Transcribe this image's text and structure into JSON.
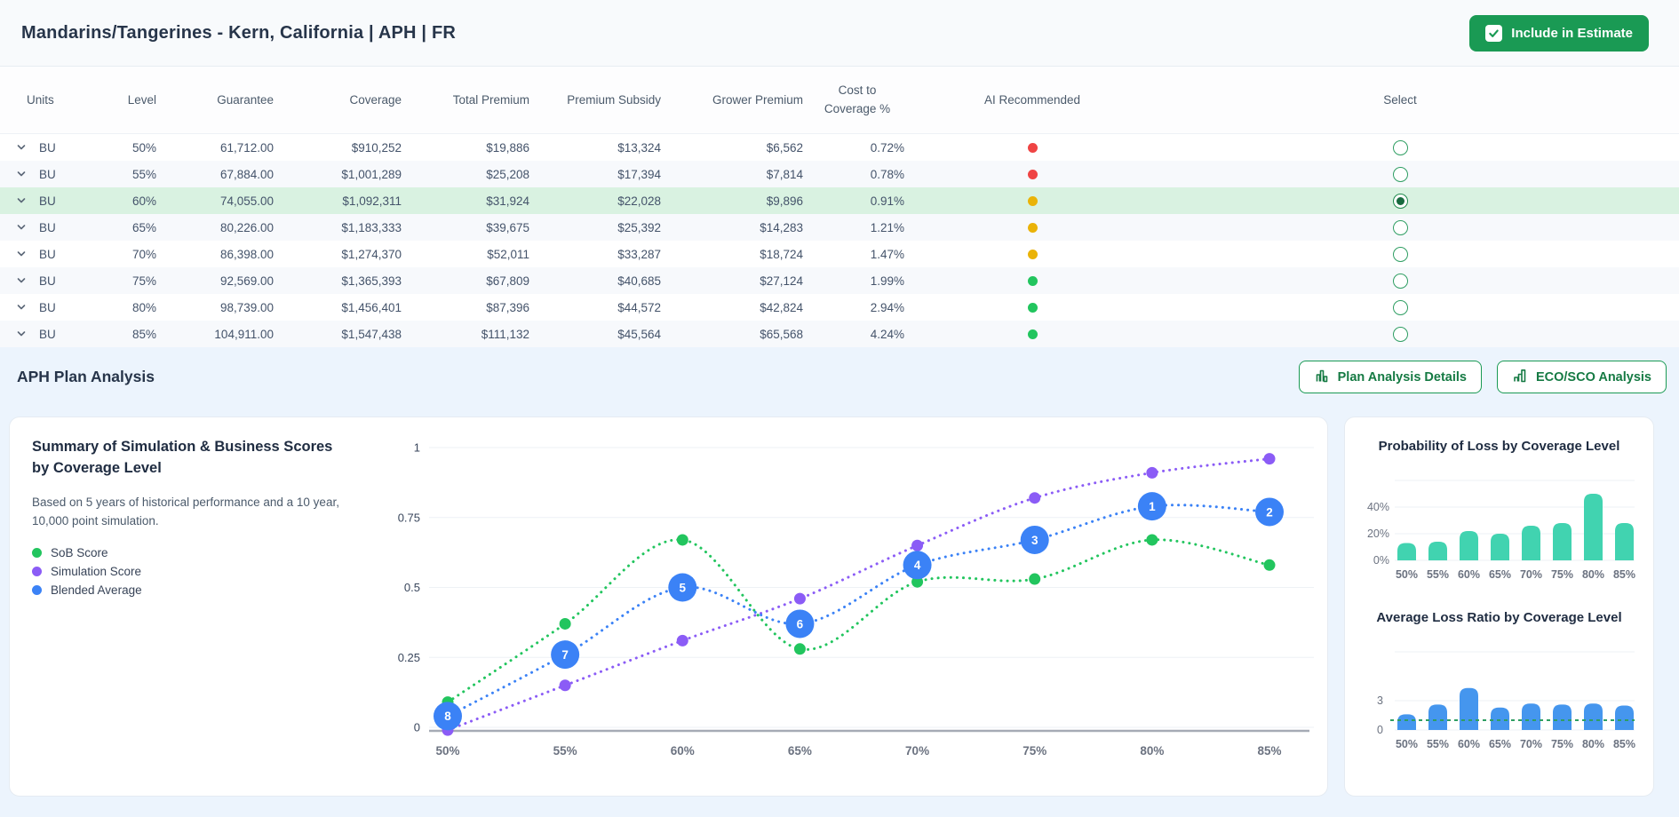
{
  "header": {
    "title": "Mandarins/Tangerines - Kern, California | APH | FR",
    "include_button": "Include in Estimate"
  },
  "table": {
    "columns": [
      "Units",
      "Level",
      "Guarantee",
      "Coverage",
      "Total Premium",
      "Premium Subsidy",
      "Grower Premium",
      "Cost to Coverage %",
      "AI Recommended",
      "Select"
    ],
    "ai_dot_colors": {
      "red": "#ef4444",
      "yellow": "#eab308",
      "green": "#22c55e"
    },
    "rows": [
      {
        "units": "BU",
        "level": "50%",
        "guarantee": "61,712.00",
        "coverage": "$910,252",
        "total_premium": "$19,886",
        "premium_subsidy": "$13,324",
        "grower_premium": "$6,562",
        "cost_to_coverage_pct": "0.72%",
        "ai_recommended": "red",
        "selected": false,
        "highlighted": false
      },
      {
        "units": "BU",
        "level": "55%",
        "guarantee": "67,884.00",
        "coverage": "$1,001,289",
        "total_premium": "$25,208",
        "premium_subsidy": "$17,394",
        "grower_premium": "$7,814",
        "cost_to_coverage_pct": "0.78%",
        "ai_recommended": "red",
        "selected": false,
        "highlighted": false
      },
      {
        "units": "BU",
        "level": "60%",
        "guarantee": "74,055.00",
        "coverage": "$1,092,311",
        "total_premium": "$31,924",
        "premium_subsidy": "$22,028",
        "grower_premium": "$9,896",
        "cost_to_coverage_pct": "0.91%",
        "ai_recommended": "yellow",
        "selected": true,
        "highlighted": true
      },
      {
        "units": "BU",
        "level": "65%",
        "guarantee": "80,226.00",
        "coverage": "$1,183,333",
        "total_premium": "$39,675",
        "premium_subsidy": "$25,392",
        "grower_premium": "$14,283",
        "cost_to_coverage_pct": "1.21%",
        "ai_recommended": "yellow",
        "selected": false,
        "highlighted": false
      },
      {
        "units": "BU",
        "level": "70%",
        "guarantee": "86,398.00",
        "coverage": "$1,274,370",
        "total_premium": "$52,011",
        "premium_subsidy": "$33,287",
        "grower_premium": "$18,724",
        "cost_to_coverage_pct": "1.47%",
        "ai_recommended": "yellow",
        "selected": false,
        "highlighted": false
      },
      {
        "units": "BU",
        "level": "75%",
        "guarantee": "92,569.00",
        "coverage": "$1,365,393",
        "total_premium": "$67,809",
        "premium_subsidy": "$40,685",
        "grower_premium": "$27,124",
        "cost_to_coverage_pct": "1.99%",
        "ai_recommended": "green",
        "selected": false,
        "highlighted": false
      },
      {
        "units": "BU",
        "level": "80%",
        "guarantee": "98,739.00",
        "coverage": "$1,456,401",
        "total_premium": "$87,396",
        "premium_subsidy": "$44,572",
        "grower_premium": "$42,824",
        "cost_to_coverage_pct": "2.94%",
        "ai_recommended": "green",
        "selected": false,
        "highlighted": false
      },
      {
        "units": "BU",
        "level": "85%",
        "guarantee": "104,911.00",
        "coverage": "$1,547,438",
        "total_premium": "$111,132",
        "premium_subsidy": "$45,564",
        "grower_premium": "$65,568",
        "cost_to_coverage_pct": "4.24%",
        "ai_recommended": "green",
        "selected": false,
        "highlighted": false
      }
    ]
  },
  "analysis": {
    "title": "APH Plan Analysis",
    "plan_details_label": "Plan Analysis Details",
    "eco_sco_label": "ECO/SCO Analysis"
  },
  "chart_data": [
    {
      "type": "line",
      "title": "Summary of Simulation & Business Scores by Coverage Level",
      "subtitle": "Based on 5 years of historical performance and a 10 year, 10,000 point simulation.",
      "categories": [
        "50%",
        "55%",
        "60%",
        "65%",
        "70%",
        "75%",
        "80%",
        "85%"
      ],
      "yticks": [
        0,
        0.25,
        0.5,
        0.75,
        1
      ],
      "ylim": [
        0,
        1
      ],
      "grid": true,
      "legend_position": "left",
      "line_style": "dotted",
      "series": [
        {
          "name": "SoB Score",
          "color": "#22c55e",
          "values": [
            0.09,
            0.37,
            0.67,
            0.28,
            0.52,
            0.53,
            0.67,
            0.58
          ]
        },
        {
          "name": "Simulation Score",
          "color": "#8b5cf6",
          "values": [
            -0.01,
            0.15,
            0.31,
            0.46,
            0.65,
            0.82,
            0.91,
            0.96
          ]
        },
        {
          "name": "Blended Average",
          "color": "#3b82f6",
          "values": [
            0.04,
            0.26,
            0.5,
            0.37,
            0.58,
            0.67,
            0.79,
            0.77
          ],
          "point_labels": [
            "8",
            "7",
            "5",
            "6",
            "4",
            "3",
            "1",
            "2"
          ]
        }
      ]
    },
    {
      "type": "bar",
      "title": "Probability of Loss by Coverage Level",
      "categories": [
        "50%",
        "55%",
        "60%",
        "65%",
        "70%",
        "75%",
        "80%",
        "85%"
      ],
      "values": [
        13,
        14,
        22,
        20,
        26,
        28,
        50,
        28
      ],
      "unit": "%",
      "ytick_labels": [
        "0%",
        "20%",
        "40%"
      ],
      "ylim": [
        0,
        60
      ],
      "color": "#41d3b0"
    },
    {
      "type": "bar",
      "title": "Average Loss Ratio by Coverage Level",
      "categories": [
        "50%",
        "55%",
        "60%",
        "65%",
        "70%",
        "75%",
        "80%",
        "85%"
      ],
      "values": [
        1.6,
        2.6,
        4.3,
        2.3,
        2.7,
        2.6,
        2.7,
        2.5
      ],
      "ytick_labels": [
        "0",
        "3"
      ],
      "ylim": [
        0,
        8
      ],
      "reference_line": 1,
      "reference_line_color": "#2f9e63",
      "color": "#4596ee"
    }
  ],
  "colors": {
    "primary_green": "#1a9a54",
    "highlight_row": "#d9f2e1",
    "section_bg": "#ecf4fd",
    "radio_green": "#2f9e63"
  }
}
